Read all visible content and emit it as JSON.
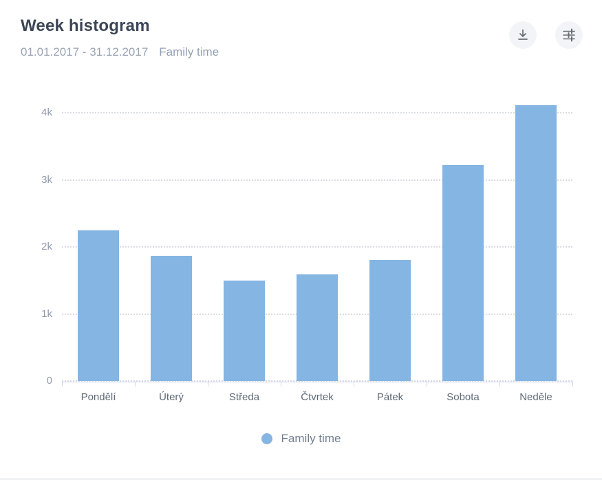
{
  "header": {
    "title": "Week histogram",
    "date_range": "01.01.2017 - 31.12.2017",
    "metric": "Family time",
    "download_button": "download",
    "settings_button": "filter-sliders"
  },
  "chart_data": {
    "type": "bar",
    "title": "Week histogram",
    "subtitle": "01.01.2017 - 31.12.2017",
    "categories": [
      "Pondělí",
      "Úterý",
      "Středa",
      "Čtvrtek",
      "Pátek",
      "Sobota",
      "Neděle"
    ],
    "series": [
      {
        "name": "Family time",
        "values": [
          2250,
          1870,
          1500,
          1590,
          1810,
          3220,
          4110
        ]
      }
    ],
    "xlabel": "",
    "ylabel": "",
    "ylim": [
      0,
      4300
    ],
    "ytick_values": [
      0,
      1000,
      2000,
      3000,
      4000
    ],
    "ytick_labels": [
      "0",
      "1k",
      "2k",
      "3k",
      "4k"
    ],
    "grid": "horizontal-dotted",
    "legend_position": "bottom",
    "bar_color": "#84b5e3",
    "axis_color": "#ccd6eb"
  },
  "legend": {
    "label": "Family time",
    "dot_color": "#84b5e3"
  },
  "colors": {
    "bar": "#84b5e3",
    "axis_line": "#ccd6eb",
    "gridline": "#d9dce1",
    "title_text": "#3c4657",
    "subtitle_text": "#9aa3b4",
    "button_bg": "#f3f4f7"
  }
}
